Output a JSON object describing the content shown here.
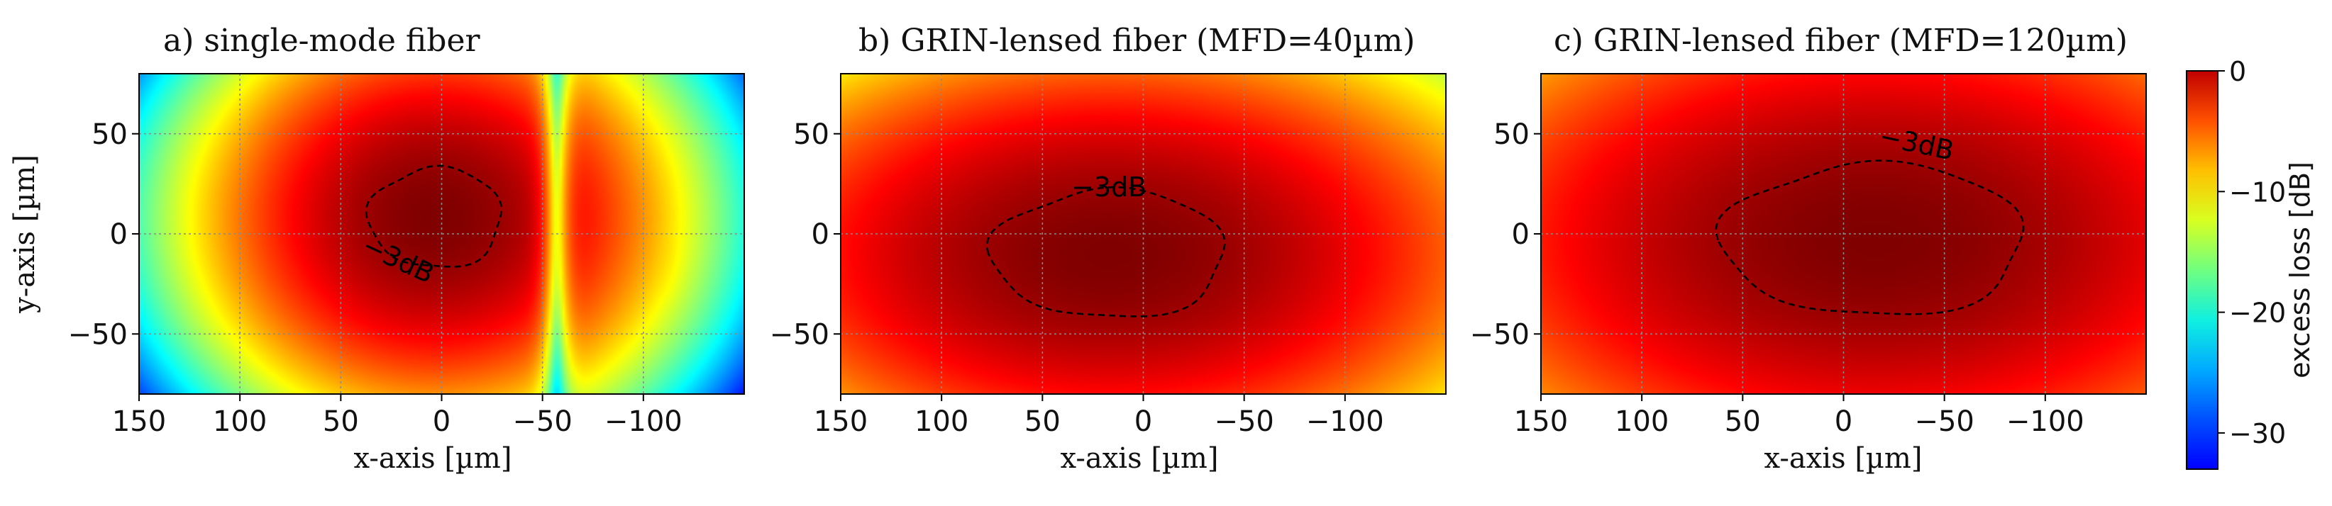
{
  "chart_data": [
    {
      "type": "heatmap",
      "title": "a) single-mode fiber",
      "xlabel": "x-axis [µm]",
      "ylabel": "y-axis [µm]",
      "xlim": [
        150,
        -150
      ],
      "ylim": [
        -80,
        80
      ],
      "xticks": [
        150,
        100,
        50,
        0,
        -50,
        -100
      ],
      "xtick_labels": [
        "150",
        "100",
        "50",
        "0",
        "−50",
        "−100"
      ],
      "yticks": [
        50,
        0,
        -50
      ],
      "ytick_labels": [
        "50",
        "0",
        "−50"
      ],
      "grid": true,
      "peak_db": 0,
      "contour_label": "−3dB",
      "contour_center": [
        3,
        8
      ],
      "contour_radii": [
        33,
        25
      ],
      "field": {
        "main_lobe": {
          "center": [
            3,
            8
          ],
          "sigma": [
            72,
            62
          ]
        },
        "side_lobe": {
          "center": [
            -88,
            0
          ],
          "sigma": [
            34,
            52
          ],
          "peak_db": -9
        },
        "null_x": -57
      }
    },
    {
      "type": "heatmap",
      "title": "b) GRIN-lensed fiber (MFD=40µm)",
      "xlabel": "x-axis [µm]",
      "ylabel": "",
      "xlim": [
        150,
        -150
      ],
      "ylim": [
        -80,
        80
      ],
      "xticks": [
        150,
        100,
        50,
        0,
        -50,
        -100
      ],
      "xtick_labels": [
        "150",
        "100",
        "50",
        "0",
        "−50",
        "−100"
      ],
      "yticks": [
        50,
        0,
        -50
      ],
      "ytick_labels": [
        "50",
        "0",
        "−50"
      ],
      "grid": true,
      "peak_db": 0,
      "contour_label": "−3dB",
      "contour_center": [
        17,
        -10
      ],
      "contour_radii": [
        58,
        32
      ],
      "field": {
        "main_lobe": {
          "center": [
            17,
            -10
          ],
          "sigma": [
            130,
            70
          ]
        }
      }
    },
    {
      "type": "heatmap",
      "title": "c) GRIN-lensed fiber (MFD=120µm)",
      "xlabel": "x-axis [µm]",
      "ylabel": "",
      "xlim": [
        150,
        -150
      ],
      "ylim": [
        -80,
        80
      ],
      "xticks": [
        150,
        100,
        50,
        0,
        -50,
        -100
      ],
      "xtick_labels": [
        "150",
        "100",
        "50",
        "0",
        "−50",
        "−100"
      ],
      "yticks": [
        50,
        0,
        -50
      ],
      "ytick_labels": [
        "50",
        "0",
        "−50"
      ],
      "grid": true,
      "peak_db": 0,
      "contour_label": "−3dB",
      "contour_center": [
        -15,
        -3
      ],
      "contour_radii": [
        75,
        38
      ],
      "field": {
        "main_lobe": {
          "center": [
            -15,
            -3
          ],
          "sigma": [
            155,
            84
          ]
        }
      }
    }
  ],
  "colorbar": {
    "label": "excess loss [dB]",
    "range": [
      -33,
      0
    ],
    "ticks": [
      0,
      -10,
      -20,
      -30
    ],
    "tick_labels": [
      "0",
      "−10",
      "−20",
      "−30"
    ],
    "colormap": "jet"
  },
  "colors": {
    "grid": "#8a8a8a",
    "contour": "#000000",
    "text": "#111111"
  }
}
